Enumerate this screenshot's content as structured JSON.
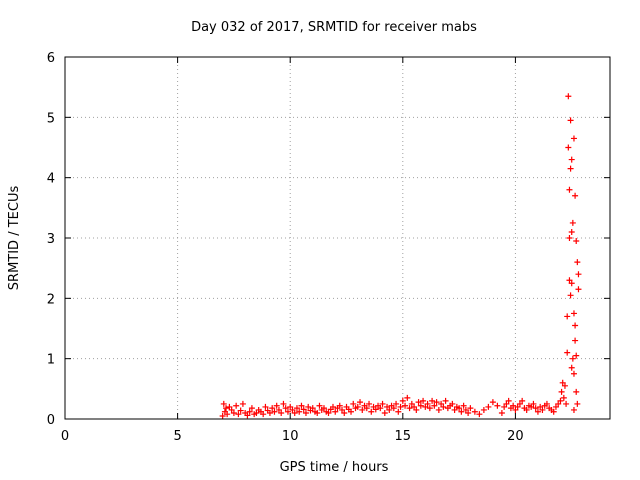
{
  "chart_data": {
    "type": "scatter",
    "title": "Day 032 of 2017, SRMTID for receiver mabs",
    "xlabel": "GPS time / hours",
    "ylabel": "SRMTID / TECUs",
    "xlim": [
      0,
      24.2
    ],
    "ylim": [
      0,
      6
    ],
    "xticks": [
      "0",
      "5",
      "10",
      "15",
      "20"
    ],
    "xtick_values": [
      0,
      5,
      10,
      15,
      20
    ],
    "yticks": [
      "0",
      "1",
      "2",
      "3",
      "4",
      "5",
      "6"
    ],
    "ytick_values": [
      0,
      1,
      2,
      3,
      4,
      5,
      6
    ],
    "grid": true,
    "marker": "+",
    "series": [
      {
        "name": "SRMTID",
        "color": "#ff0000",
        "x": [
          7.0,
          7.05,
          7.1,
          7.15,
          7.2,
          7.3,
          7.4,
          7.5,
          7.6,
          7.7,
          7.8,
          7.9,
          8.0,
          8.1,
          8.2,
          8.3,
          8.4,
          8.5,
          8.6,
          8.7,
          8.8,
          8.9,
          9.0,
          9.1,
          9.2,
          9.3,
          9.4,
          9.5,
          9.6,
          9.7,
          9.8,
          9.9,
          10.0,
          10.1,
          10.2,
          10.3,
          10.4,
          10.5,
          10.6,
          10.7,
          10.8,
          10.9,
          11.0,
          11.1,
          11.2,
          11.3,
          11.4,
          11.5,
          11.6,
          11.7,
          11.8,
          11.9,
          12.0,
          12.1,
          12.2,
          12.3,
          12.4,
          12.5,
          12.6,
          12.7,
          12.8,
          12.9,
          13.0,
          13.1,
          13.2,
          13.3,
          13.4,
          13.5,
          13.6,
          13.7,
          13.8,
          13.9,
          14.0,
          14.1,
          14.2,
          14.3,
          14.4,
          14.5,
          14.6,
          14.7,
          14.8,
          14.9,
          15.0,
          15.1,
          15.2,
          15.3,
          15.4,
          15.5,
          15.6,
          15.7,
          15.8,
          15.9,
          16.0,
          16.1,
          16.2,
          16.3,
          16.4,
          16.5,
          16.6,
          16.7,
          16.8,
          16.9,
          17.0,
          17.1,
          17.2,
          17.3,
          17.4,
          17.5,
          17.6,
          17.7,
          17.8,
          17.9,
          18.0,
          18.2,
          18.4,
          18.6,
          18.8,
          19.0,
          19.2,
          19.4,
          19.5,
          19.6,
          19.7,
          19.8,
          19.9,
          20.0,
          20.1,
          20.2,
          20.3,
          20.4,
          20.5,
          20.6,
          20.7,
          20.8,
          20.9,
          21.0,
          21.1,
          21.2,
          21.3,
          21.4,
          21.5,
          21.6,
          21.7,
          21.8,
          21.9,
          22.0,
          22.05,
          22.1,
          22.15,
          22.2,
          22.25,
          22.3,
          22.3,
          22.35,
          22.35,
          22.4,
          22.4,
          22.4,
          22.45,
          22.45,
          22.45,
          22.5,
          22.5,
          22.5,
          22.5,
          22.55,
          22.55,
          22.6,
          22.6,
          22.6,
          22.6,
          22.65,
          22.65,
          22.65,
          22.7,
          22.7,
          22.7,
          22.75,
          22.75,
          22.8,
          22.8
        ],
        "y": [
          0.05,
          0.25,
          0.12,
          0.18,
          0.08,
          0.2,
          0.15,
          0.1,
          0.22,
          0.08,
          0.14,
          0.25,
          0.1,
          0.06,
          0.12,
          0.18,
          0.08,
          0.1,
          0.15,
          0.12,
          0.08,
          0.2,
          0.14,
          0.1,
          0.18,
          0.12,
          0.22,
          0.15,
          0.1,
          0.25,
          0.18,
          0.12,
          0.2,
          0.15,
          0.1,
          0.18,
          0.12,
          0.22,
          0.16,
          0.1,
          0.2,
          0.14,
          0.18,
          0.12,
          0.1,
          0.22,
          0.15,
          0.18,
          0.12,
          0.1,
          0.16,
          0.2,
          0.12,
          0.18,
          0.22,
          0.15,
          0.1,
          0.2,
          0.16,
          0.12,
          0.25,
          0.18,
          0.2,
          0.28,
          0.15,
          0.22,
          0.18,
          0.25,
          0.12,
          0.2,
          0.16,
          0.22,
          0.18,
          0.25,
          0.1,
          0.2,
          0.15,
          0.22,
          0.18,
          0.25,
          0.12,
          0.2,
          0.3,
          0.22,
          0.35,
          0.18,
          0.25,
          0.2,
          0.15,
          0.28,
          0.22,
          0.3,
          0.2,
          0.25,
          0.18,
          0.3,
          0.22,
          0.28,
          0.15,
          0.25,
          0.2,
          0.3,
          0.18,
          0.22,
          0.25,
          0.15,
          0.2,
          0.18,
          0.12,
          0.22,
          0.15,
          0.1,
          0.18,
          0.12,
          0.08,
          0.15,
          0.2,
          0.28,
          0.22,
          0.1,
          0.2,
          0.25,
          0.3,
          0.18,
          0.22,
          0.15,
          0.2,
          0.25,
          0.3,
          0.18,
          0.15,
          0.22,
          0.2,
          0.25,
          0.18,
          0.12,
          0.2,
          0.15,
          0.22,
          0.25,
          0.18,
          0.15,
          0.12,
          0.2,
          0.25,
          0.3,
          0.45,
          0.6,
          0.35,
          0.55,
          0.25,
          1.7,
          1.1,
          5.35,
          4.5,
          3.8,
          2.3,
          3.0,
          4.15,
          4.95,
          2.05,
          3.1,
          2.25,
          4.3,
          0.85,
          1.0,
          3.25,
          1.75,
          0.75,
          0.15,
          4.65,
          1.55,
          3.7,
          1.3,
          0.45,
          2.95,
          1.05,
          2.6,
          0.25,
          2.4,
          2.15
        ]
      }
    ]
  }
}
